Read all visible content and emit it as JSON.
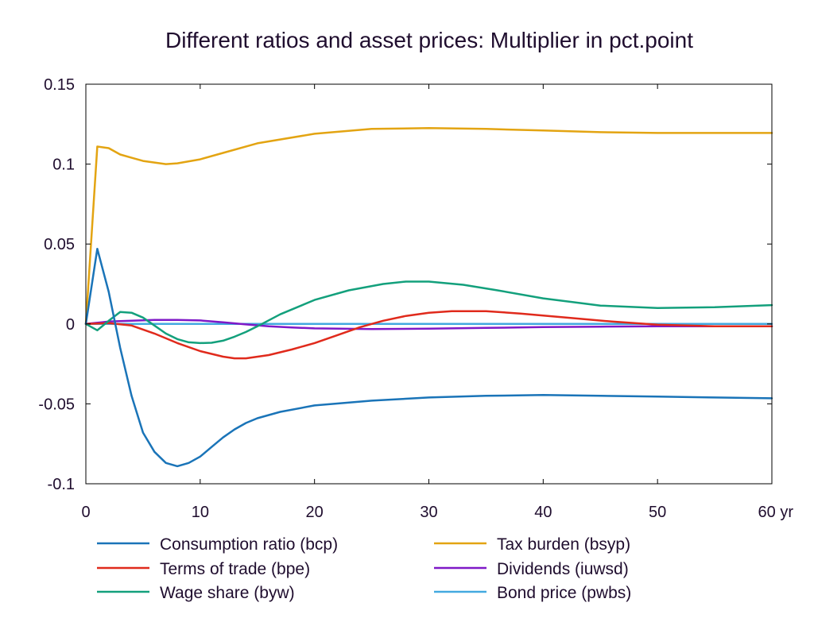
{
  "chart_data": {
    "type": "line",
    "title": "Different ratios and asset prices: Multiplier in pct.point",
    "xlim": [
      0,
      60
    ],
    "ylim": [
      -0.1,
      0.15
    ],
    "x_ticks": [
      {
        "value": 0,
        "label": "0"
      },
      {
        "value": 10,
        "label": "10"
      },
      {
        "value": 20,
        "label": "20"
      },
      {
        "value": 30,
        "label": "30"
      },
      {
        "value": 40,
        "label": "40"
      },
      {
        "value": 50,
        "label": "50"
      },
      {
        "value": 60,
        "label": "60 yr"
      }
    ],
    "y_ticks": [
      {
        "value": 0.15,
        "label": "0.15"
      },
      {
        "value": 0.1,
        "label": "0.1"
      },
      {
        "value": 0.05,
        "label": "0.05"
      },
      {
        "value": 0,
        "label": "0"
      },
      {
        "value": -0.05,
        "label": "-0.05"
      },
      {
        "value": -0.1,
        "label": "-0.1"
      }
    ],
    "grid": false,
    "legend_position": "bottom",
    "series": [
      {
        "name": "Consumption ratio (bcp)",
        "color": "#1a74b8",
        "points": [
          [
            0,
            0
          ],
          [
            1,
            0.047
          ],
          [
            2,
            0.02
          ],
          [
            3,
            -0.015
          ],
          [
            4,
            -0.045
          ],
          [
            5,
            -0.068
          ],
          [
            6,
            -0.08
          ],
          [
            7,
            -0.087
          ],
          [
            8,
            -0.089
          ],
          [
            9,
            -0.087
          ],
          [
            10,
            -0.083
          ],
          [
            11,
            -0.077
          ],
          [
            12,
            -0.071
          ],
          [
            13,
            -0.066
          ],
          [
            14,
            -0.062
          ],
          [
            15,
            -0.059
          ],
          [
            17,
            -0.055
          ],
          [
            20,
            -0.051
          ],
          [
            25,
            -0.048
          ],
          [
            30,
            -0.046
          ],
          [
            35,
            -0.045
          ],
          [
            40,
            -0.0445
          ],
          [
            45,
            -0.045
          ],
          [
            50,
            -0.0455
          ],
          [
            55,
            -0.046
          ],
          [
            60,
            -0.0465
          ]
        ]
      },
      {
        "name": "Tax burden (bsyp)",
        "color": "#e3a412",
        "points": [
          [
            0,
            0
          ],
          [
            1,
            0.111
          ],
          [
            2,
            0.11
          ],
          [
            3,
            0.106
          ],
          [
            4,
            0.104
          ],
          [
            5,
            0.102
          ],
          [
            6,
            0.101
          ],
          [
            7,
            0.1
          ],
          [
            8,
            0.1005
          ],
          [
            10,
            0.103
          ],
          [
            12,
            0.107
          ],
          [
            15,
            0.113
          ],
          [
            20,
            0.119
          ],
          [
            25,
            0.122
          ],
          [
            30,
            0.1225
          ],
          [
            35,
            0.122
          ],
          [
            40,
            0.121
          ],
          [
            45,
            0.12
          ],
          [
            50,
            0.1195
          ],
          [
            55,
            0.1195
          ],
          [
            60,
            0.1195
          ]
        ]
      },
      {
        "name": "Terms of trade (bpe)",
        "color": "#e02a1c",
        "points": [
          [
            0,
            0
          ],
          [
            2,
            0.0005
          ],
          [
            4,
            -0.001
          ],
          [
            6,
            -0.006
          ],
          [
            8,
            -0.012
          ],
          [
            10,
            -0.017
          ],
          [
            12,
            -0.0205
          ],
          [
            13,
            -0.0215
          ],
          [
            14,
            -0.0215
          ],
          [
            16,
            -0.0195
          ],
          [
            18,
            -0.016
          ],
          [
            20,
            -0.012
          ],
          [
            22,
            -0.007
          ],
          [
            24,
            -0.002
          ],
          [
            26,
            0.002
          ],
          [
            28,
            0.005
          ],
          [
            30,
            0.007
          ],
          [
            32,
            0.008
          ],
          [
            35,
            0.008
          ],
          [
            38,
            0.0065
          ],
          [
            42,
            0.004
          ],
          [
            46,
            0.0015
          ],
          [
            50,
            -0.0005
          ],
          [
            55,
            -0.0015
          ],
          [
            60,
            -0.0015
          ]
        ]
      },
      {
        "name": "Dividends (iuwsd)",
        "color": "#7f19c7",
        "points": [
          [
            0,
            0
          ],
          [
            2,
            0.0015
          ],
          [
            4,
            0.002
          ],
          [
            6,
            0.0025
          ],
          [
            8,
            0.0025
          ],
          [
            10,
            0.0022
          ],
          [
            12,
            0.001
          ],
          [
            14,
            -0.0003
          ],
          [
            16,
            -0.0015
          ],
          [
            18,
            -0.0022
          ],
          [
            20,
            -0.0028
          ],
          [
            25,
            -0.0032
          ],
          [
            30,
            -0.003
          ],
          [
            35,
            -0.0025
          ],
          [
            40,
            -0.002
          ],
          [
            45,
            -0.0017
          ],
          [
            50,
            -0.0015
          ],
          [
            55,
            -0.0015
          ],
          [
            60,
            -0.0015
          ]
        ]
      },
      {
        "name": "Wage share (byw)",
        "color": "#13a07c",
        "points": [
          [
            0,
            0
          ],
          [
            1,
            -0.004
          ],
          [
            2,
            0.002
          ],
          [
            3,
            0.0075
          ],
          [
            4,
            0.007
          ],
          [
            5,
            0.004
          ],
          [
            6,
            -0.001
          ],
          [
            7,
            -0.006
          ],
          [
            8,
            -0.0095
          ],
          [
            9,
            -0.0115
          ],
          [
            10,
            -0.012
          ],
          [
            11,
            -0.0118
          ],
          [
            12,
            -0.0105
          ],
          [
            13,
            -0.008
          ],
          [
            14,
            -0.005
          ],
          [
            15,
            -0.0015
          ],
          [
            17,
            0.006
          ],
          [
            20,
            0.015
          ],
          [
            23,
            0.021
          ],
          [
            26,
            0.025
          ],
          [
            28,
            0.0265
          ],
          [
            30,
            0.0265
          ],
          [
            33,
            0.0245
          ],
          [
            36,
            0.021
          ],
          [
            40,
            0.016
          ],
          [
            45,
            0.0115
          ],
          [
            50,
            0.01
          ],
          [
            55,
            0.0105
          ],
          [
            60,
            0.0118
          ]
        ]
      },
      {
        "name": "Bond price (pwbs)",
        "color": "#43a9e0",
        "points": [
          [
            0,
            0
          ],
          [
            60,
            0
          ]
        ]
      }
    ],
    "legend_order": [
      "Consumption ratio (bcp)",
      "Tax burden (bsyp)",
      "Terms of trade (bpe)",
      "Dividends (iuwsd)",
      "Wage share (byw)",
      "Bond price (pwbs)"
    ]
  }
}
